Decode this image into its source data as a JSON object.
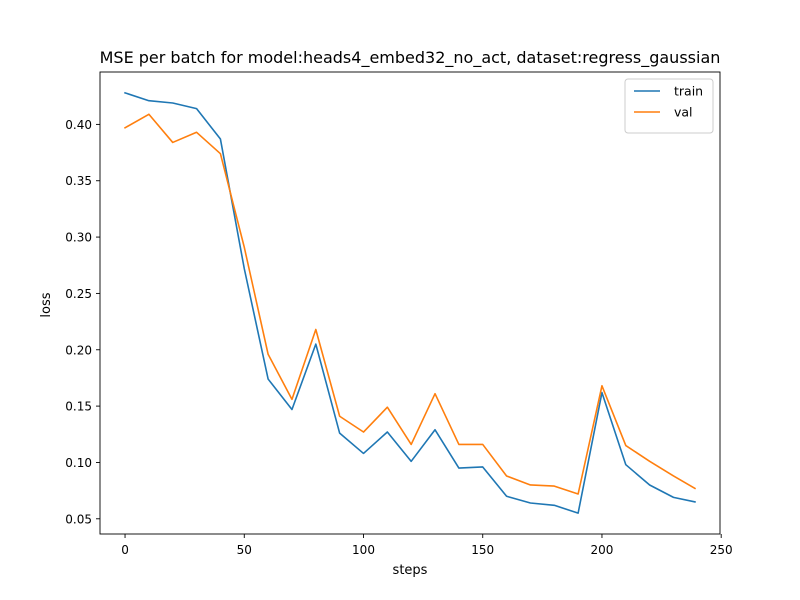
{
  "chart_data": {
    "type": "line",
    "title": "MSE per batch for model:heads4_embed32_no_act, dataset:regress_gaussian",
    "xlabel": "steps",
    "ylabel": "loss",
    "xlim": [
      -10.5,
      249.5
    ],
    "ylim": [
      0.0365,
      0.4465
    ],
    "xticks": [
      0,
      50,
      100,
      150,
      200,
      250
    ],
    "yticks": [
      0.05,
      0.1,
      0.15,
      0.2,
      0.25,
      0.3,
      0.35,
      0.4
    ],
    "xtick_labels": [
      "0",
      "50",
      "100",
      "150",
      "200",
      "250"
    ],
    "ytick_labels": [
      "0.05",
      "0.10",
      "0.15",
      "0.20",
      "0.25",
      "0.30",
      "0.35",
      "0.40"
    ],
    "grid": false,
    "legend_position": "top-right",
    "x": [
      0,
      10,
      20,
      30,
      40,
      50,
      60,
      70,
      80,
      90,
      100,
      110,
      120,
      130,
      140,
      150,
      160,
      170,
      180,
      190,
      200,
      210,
      220,
      230,
      239
    ],
    "series": [
      {
        "name": "train",
        "color": "#1f77b4",
        "values": [
          0.428,
          0.421,
          0.419,
          0.414,
          0.387,
          0.272,
          0.174,
          0.147,
          0.205,
          0.126,
          0.108,
          0.127,
          0.101,
          0.129,
          0.095,
          0.096,
          0.07,
          0.064,
          0.062,
          0.055,
          0.162,
          0.098,
          0.08,
          0.069,
          0.065
        ]
      },
      {
        "name": "val",
        "color": "#ff7f0e",
        "values": [
          0.397,
          0.409,
          0.384,
          0.393,
          0.374,
          0.291,
          0.196,
          0.156,
          0.218,
          0.141,
          0.127,
          0.149,
          0.116,
          0.161,
          0.116,
          0.116,
          0.088,
          0.08,
          0.079,
          0.072,
          0.168,
          0.115,
          0.101,
          0.088,
          0.077
        ]
      }
    ]
  }
}
